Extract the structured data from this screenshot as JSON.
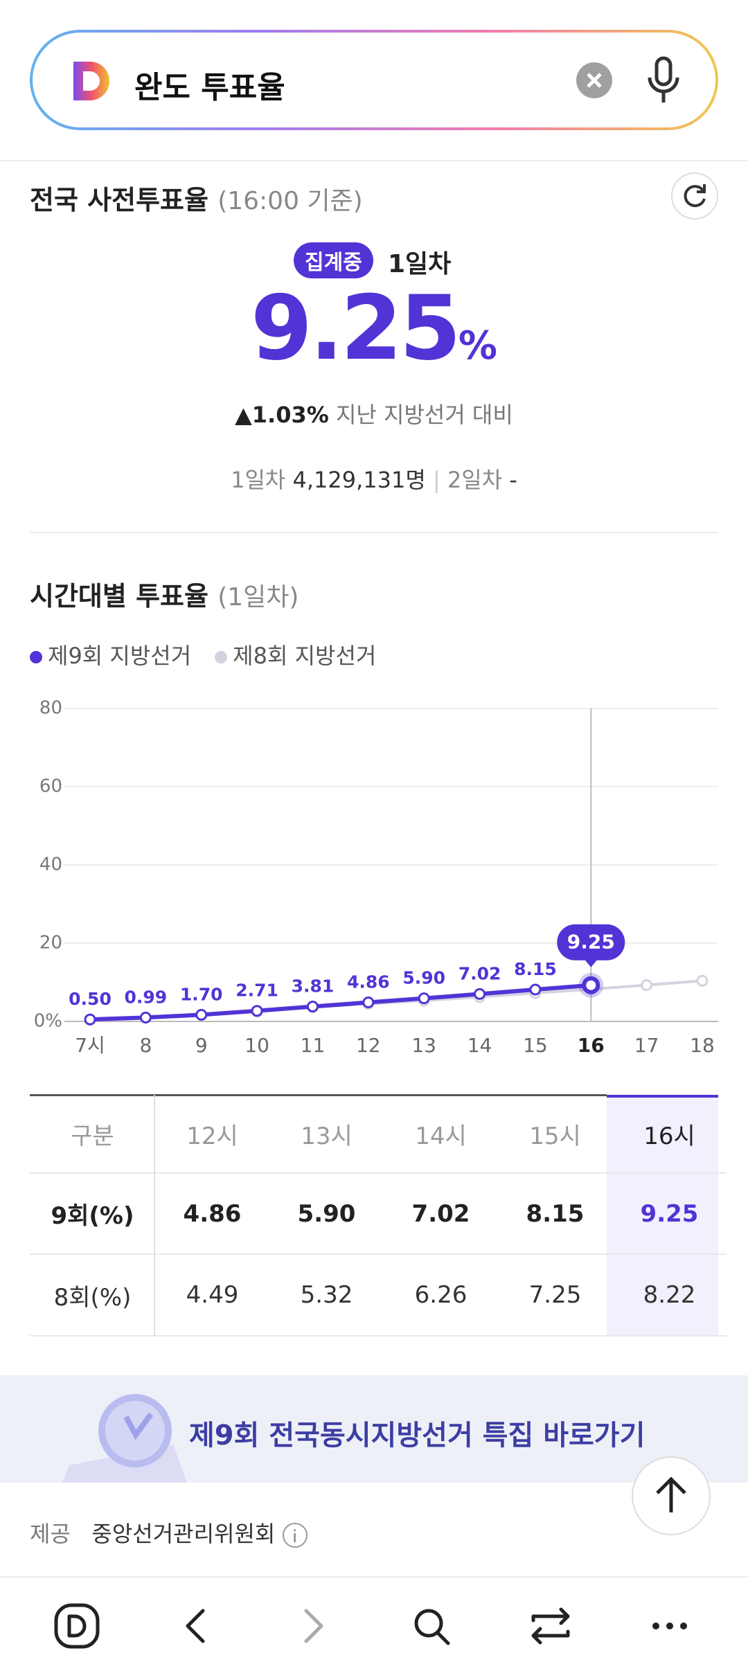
{
  "search": {
    "query": "완도 투표율"
  },
  "summary": {
    "title": "전국 사전투표율",
    "time_note": "(16:00 기준)",
    "badge": "집계중",
    "day": "1일차",
    "rate": "9.25",
    "rate_unit": "%",
    "change": "1.03%",
    "change_note": "지난 지방선거 대비",
    "day1_label": "1일차",
    "day1_count": "4,129,131명",
    "day2_label": "2일차",
    "day2_count": "-"
  },
  "hourly": {
    "title": "시간대별 투표율",
    "subtitle": "(1일차)"
  },
  "chart_data": {
    "type": "line",
    "categories": [
      "7시",
      "8",
      "9",
      "10",
      "11",
      "12",
      "13",
      "14",
      "15",
      "16",
      "17",
      "18"
    ],
    "series": [
      {
        "name": "제9회 지방선거",
        "color": "#5233d6",
        "values": [
          0.5,
          0.99,
          1.7,
          2.71,
          3.81,
          4.86,
          5.9,
          7.02,
          8.15,
          9.25,
          null,
          null
        ],
        "value_labels": [
          "0.50",
          "0.99",
          "1.70",
          "2.71",
          "3.81",
          "4.86",
          "5.90",
          "7.02",
          "8.15",
          "9.25",
          null,
          null
        ]
      },
      {
        "name": "제8회 지방선거",
        "color": "#d3d3df",
        "values": [
          0.4,
          0.9,
          1.6,
          2.5,
          3.6,
          4.49,
          5.32,
          6.26,
          7.25,
          8.22,
          9.3,
          10.4
        ]
      }
    ],
    "ylim": [
      0,
      80
    ],
    "yticks": [
      {
        "value": 0,
        "label": "0%"
      },
      20,
      40,
      60,
      80
    ],
    "grid": true
  },
  "table": {
    "headers": [
      "구분",
      "12시",
      "13시",
      "14시",
      "15시",
      "16시"
    ],
    "rows": [
      [
        "9회(%)",
        "4.86",
        "5.90",
        "7.02",
        "8.15",
        "9.25"
      ],
      [
        "8회(%)",
        "4.49",
        "5.32",
        "6.26",
        "7.25",
        "8.22"
      ]
    ]
  },
  "banner": {
    "text": "제9회 전국동시지방선거 특집 바로가기"
  },
  "footer": {
    "label": "제공",
    "provider": "중앙선거관리위원회"
  }
}
